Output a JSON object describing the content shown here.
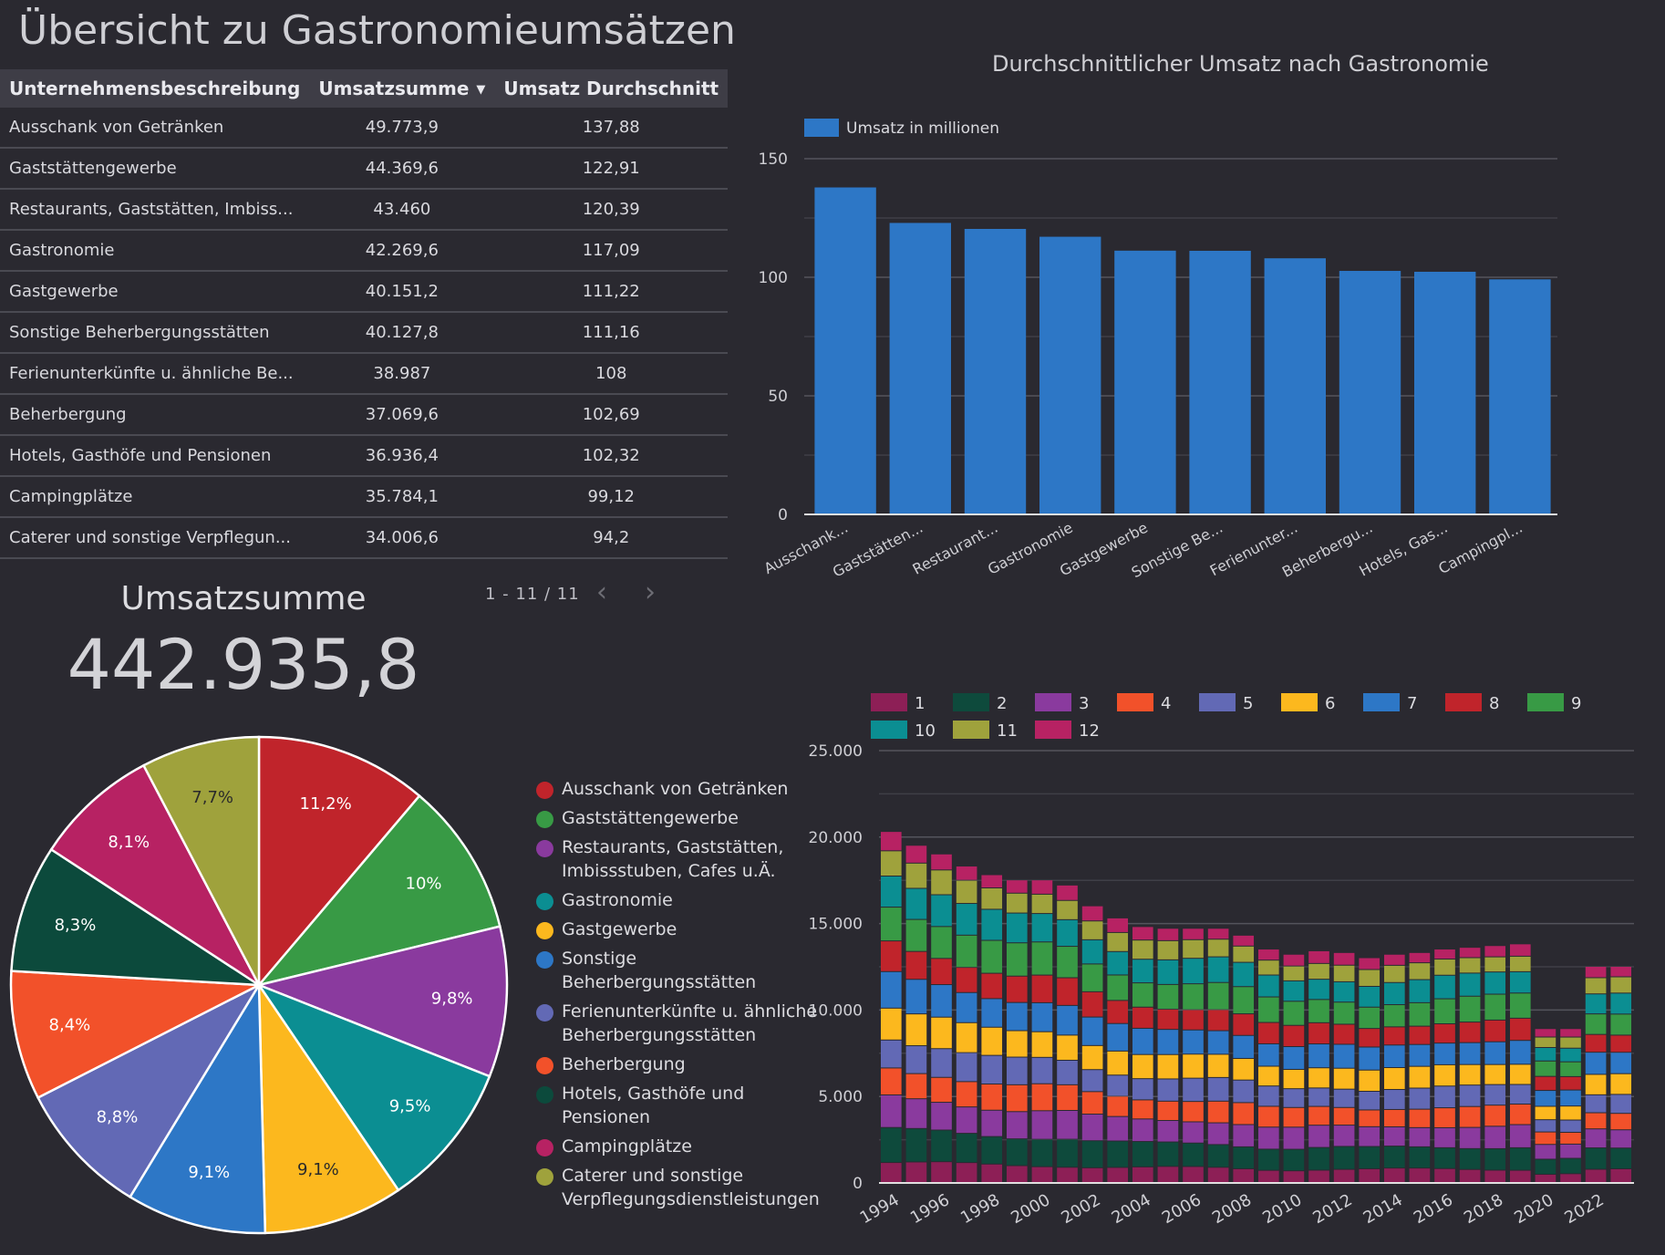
{
  "page_title": "Übersicht zu Gastronomieumsätzen",
  "table": {
    "headers": [
      "Unternehmensbeschreibung",
      "Umsatzsumme",
      "Umsatz Durchschnitt"
    ],
    "sort_indicator": "▼",
    "rows": [
      [
        "Ausschank von Getränken",
        "49.773,9",
        "137,88"
      ],
      [
        "Gaststättengewerbe",
        "44.369,6",
        "122,91"
      ],
      [
        "Restaurants, Gaststätten, Imbiss...",
        "43.460",
        "120,39"
      ],
      [
        "Gastronomie",
        "42.269,6",
        "117,09"
      ],
      [
        "Gastgewerbe",
        "40.151,2",
        "111,22"
      ],
      [
        "Sonstige Beherbergungsstätten",
        "40.127,8",
        "111,16"
      ],
      [
        "Ferienunterkünfte u. ähnliche Be...",
        "38.987",
        "108"
      ],
      [
        "Beherbergung",
        "37.069,6",
        "102,69"
      ],
      [
        "Hotels, Gasthöfe und Pensionen",
        "36.936,4",
        "102,32"
      ],
      [
        "Campingplätze",
        "35.784,1",
        "99,12"
      ],
      [
        "Caterer und sonstige Verpflegun...",
        "34.006,6",
        "94,2"
      ]
    ],
    "pagination": "1 - 11 / 11"
  },
  "scorecard": {
    "label": "Umsatzsumme",
    "value": "442.935,8"
  },
  "chart_data": [
    {
      "type": "bar",
      "title": "Durchschnittlicher Umsatz nach Gastronomie",
      "legend": "top-left",
      "color": "#2d77c6",
      "categories": [
        "Ausschank...",
        "Gaststätten...",
        "Restaurant...",
        "Gastronomie",
        "Gastgewerbe",
        "Sonstige Be...",
        "Ferienunter...",
        "Beherbergu...",
        "Hotels, Gas...",
        "Campingpl..."
      ],
      "series": [
        {
          "name": "Umsatz in millionen",
          "values": [
            137.88,
            122.91,
            120.39,
            117.09,
            111.22,
            111.16,
            108,
            102.69,
            102.32,
            99.12
          ]
        }
      ],
      "ylim": [
        0,
        150
      ],
      "yticks": [
        "0",
        "50",
        "100",
        "150"
      ],
      "grid": true
    },
    {
      "type": "pie",
      "labels": [
        "Ausschank von Getränken",
        "Gaststättengewerbe",
        "Restaurants, Gaststätten, Imbissstuben, Cafes u.Ä.",
        "Gastronomie",
        "Gastgewerbe",
        "Sonstige Beherbergungsstätten",
        "Ferienunterkünfte u. ähnliche Beherbergungsstätten",
        "Beherbergung",
        "Hotels, Gasthöfe und Pensionen",
        "Campingplätze",
        "Caterer und sonstige Verpflegungsdienstleistungen"
      ],
      "values": [
        11.2,
        10,
        9.8,
        9.5,
        9.1,
        9.1,
        8.8,
        8.4,
        8.3,
        8.1,
        7.7
      ],
      "value_labels": [
        "11,2%",
        "10%",
        "9,8%",
        "9,5%",
        "9,1%",
        "9,1%",
        "8,8%",
        "8,4%",
        "8,3%",
        "8,1%",
        "7,7%"
      ],
      "colors": [
        "#c0242b",
        "#389a45",
        "#8a3a9e",
        "#0b8e92",
        "#fcb81e",
        "#2d77c6",
        "#6269b5",
        "#f2512a",
        "#0c4a3c",
        "#b72263",
        "#9fa23c"
      ],
      "legend": "right"
    },
    {
      "type": "bar",
      "stacked": true,
      "legend": "top",
      "x": [
        "1994",
        "1995",
        "1996",
        "1997",
        "1998",
        "1999",
        "2000",
        "2001",
        "2002",
        "2003",
        "2004",
        "2005",
        "2006",
        "2007",
        "2008",
        "2009",
        "2010",
        "2011",
        "2012",
        "2013",
        "2014",
        "2015",
        "2016",
        "2017",
        "2018",
        "2019",
        "2020",
        "2021",
        "2022",
        "2023"
      ],
      "x_tick_labels": [
        "1994",
        "1996",
        "1998",
        "2000",
        "2002",
        "2004",
        "2006",
        "2008",
        "2010",
        "2012",
        "2014",
        "2016",
        "2018",
        "2020",
        "2022"
      ],
      "series_names": [
        "1",
        "2",
        "3",
        "4",
        "5",
        "6",
        "7",
        "8",
        "9",
        "10",
        "11",
        "12"
      ],
      "colors": [
        "#8d1f56",
        "#0e4a3c",
        "#8a3a9e",
        "#f2512a",
        "#6269b5",
        "#fcb81e",
        "#2d77c6",
        "#c0242b",
        "#389a45",
        "#0b8e92",
        "#9fa23c",
        "#b72263"
      ],
      "totals": [
        20300,
        19500,
        19000,
        18300,
        17800,
        17500,
        17500,
        17200,
        16000,
        15300,
        14800,
        14700,
        14700,
        14700,
        14300,
        13500,
        13200,
        13400,
        13300,
        13000,
        13200,
        13300,
        13500,
        13600,
        13700,
        13800,
        8900,
        8900,
        12500,
        12500
      ],
      "ylim": [
        0,
        25000
      ],
      "yticks": [
        "0",
        "5.000",
        "10.000",
        "15.000",
        "20.000",
        "25.000"
      ],
      "grid": true
    }
  ]
}
